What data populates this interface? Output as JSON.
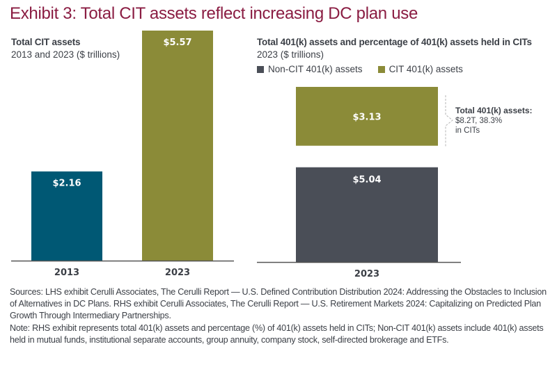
{
  "title": "Exhibit 3: Total CIT assets reflect increasing DC plan use",
  "colors": {
    "title": "#8a1c42",
    "cit_2013": "#005874",
    "cit_2023": "#8b8b38",
    "non_cit": "#4a4e57",
    "cit_401k": "#8b8b38",
    "text": "#3b3f46",
    "axis": "#555555"
  },
  "chart_data": [
    {
      "type": "bar",
      "title": "Total CIT assets",
      "subtitle": "2013 and 2023 ($ trillions)",
      "categories": [
        "2013",
        "2023"
      ],
      "values": [
        2.16,
        5.57
      ],
      "data_labels": [
        "$2.16",
        "$5.57"
      ],
      "xlabel": "",
      "ylabel": "",
      "ylim": [
        0,
        5.57
      ],
      "grid": false,
      "legend": "none"
    },
    {
      "type": "bar",
      "stacked": true,
      "title": "Total 401(k) assets and percentage of 401(k) assets held in CITs",
      "subtitle": "2023 ($ trillions)",
      "categories": [
        "2023"
      ],
      "series": [
        {
          "name": "Non-CIT 401(k) assets",
          "values": [
            5.04
          ],
          "data_label": "$5.04"
        },
        {
          "name": "CIT 401(k) assets",
          "values": [
            3.13
          ],
          "data_label": "$3.13"
        }
      ],
      "legend": "top-left",
      "grid": false,
      "annotation": {
        "title": "Total 401(k) assets:",
        "line1": "$8.2T, 38.3%",
        "line2": "in CITs"
      }
    }
  ],
  "footnotes": {
    "sources": "Sources: LHS exhibit Cerulli Associates, The Cerulli Report — U.S. Defined Contribution Distribution 2024: Addressing the Obstacles to Inclusion of Alternatives in DC Plans. RHS exhibit Cerulli Associates, The Cerulli Report —  U.S. Retirement Markets 2024: Capitalizing on Predicted Plan Growth Through Intermediary Partnerships.",
    "note": "Note: RHS exhibit represents total 401(k) assets and percentage (%) of 401(k) assets held in CITs; Non-CIT 401(k) assets include 401(k) assets held in mutual funds, institutional separate accounts, group annuity, company stock, self-directed brokerage and ETFs."
  }
}
